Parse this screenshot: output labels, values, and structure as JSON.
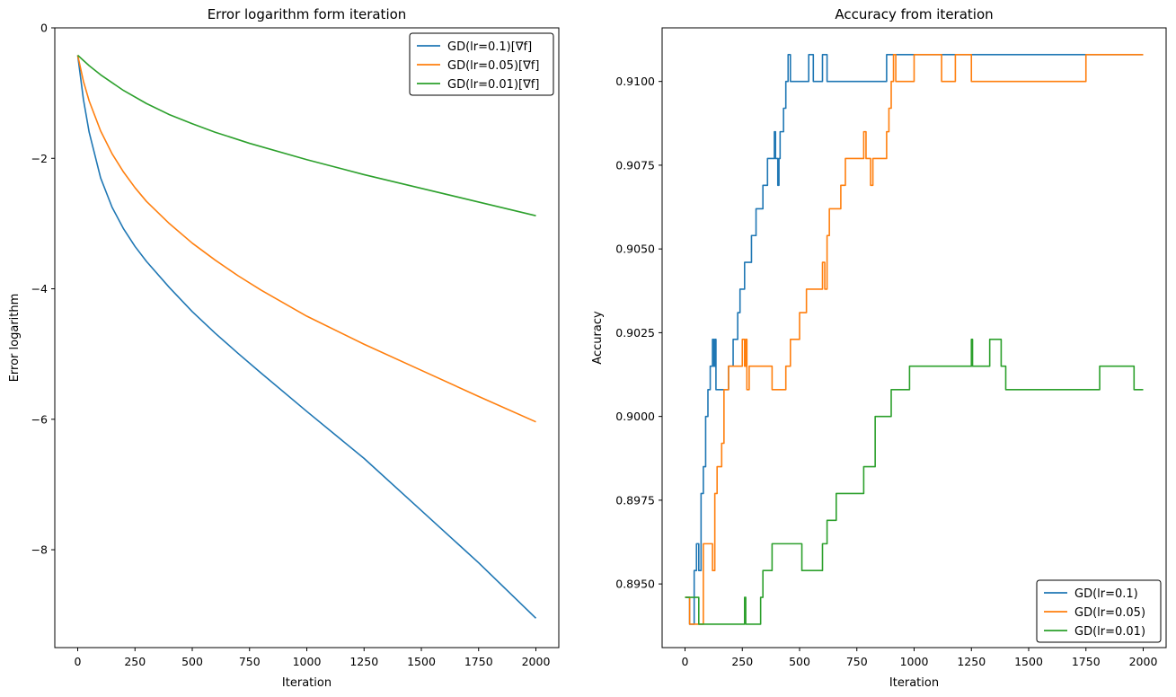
{
  "chart_data": [
    {
      "type": "line",
      "title": "Error logarithm form iteration",
      "xlabel": "Iteration",
      "ylabel": "Error logarithm",
      "xlim": [
        -100,
        2100
      ],
      "ylim": [
        -9.5,
        0
      ],
      "xticks": [
        0,
        250,
        500,
        750,
        1000,
        1250,
        1500,
        1750,
        2000
      ],
      "yticks": [
        0,
        -2,
        -4,
        -6,
        -8
      ],
      "ytick_labels": [
        "0",
        "−2",
        "−4",
        "−6",
        "−8"
      ],
      "legend_position": "upper right",
      "series": [
        {
          "name": "GD(lr=0.1)[∇f]",
          "color": "#1f77b4",
          "x": [
            0,
            25,
            50,
            100,
            150,
            200,
            250,
            300,
            400,
            500,
            600,
            700,
            800,
            1000,
            1250,
            1500,
            1750,
            2000
          ],
          "values": [
            -0.42,
            -1.1,
            -1.6,
            -2.3,
            -2.75,
            -3.08,
            -3.35,
            -3.58,
            -3.98,
            -4.35,
            -4.68,
            -4.99,
            -5.29,
            -5.88,
            -6.6,
            -7.4,
            -8.2,
            -9.05
          ]
        },
        {
          "name": "GD(lr=0.05)[∇f]",
          "color": "#ff7f0e",
          "x": [
            0,
            25,
            50,
            100,
            150,
            200,
            250,
            300,
            400,
            500,
            600,
            700,
            800,
            1000,
            1250,
            1500,
            1750,
            2000
          ],
          "values": [
            -0.42,
            -0.82,
            -1.12,
            -1.58,
            -1.93,
            -2.21,
            -2.45,
            -2.66,
            -3.0,
            -3.3,
            -3.56,
            -3.8,
            -4.02,
            -4.42,
            -4.85,
            -5.25,
            -5.65,
            -6.04
          ]
        },
        {
          "name": "GD(lr=0.01)[∇f]",
          "color": "#2ca02c",
          "x": [
            0,
            50,
            100,
            200,
            300,
            400,
            500,
            600,
            750,
            1000,
            1250,
            1500,
            1750,
            2000
          ],
          "values": [
            -0.42,
            -0.58,
            -0.72,
            -0.96,
            -1.16,
            -1.33,
            -1.47,
            -1.6,
            -1.77,
            -2.02,
            -2.25,
            -2.46,
            -2.67,
            -2.88
          ]
        }
      ]
    },
    {
      "type": "line",
      "title": "Accuracy from iteration",
      "xlabel": "Iteration",
      "ylabel": "Accuracy",
      "xlim": [
        -100,
        2100
      ],
      "ylim": [
        0.8931,
        0.9116
      ],
      "xticks": [
        0,
        250,
        500,
        750,
        1000,
        1250,
        1500,
        1750,
        2000
      ],
      "yticks": [
        0.895,
        0.8975,
        0.9,
        0.9025,
        0.905,
        0.9075,
        0.91
      ],
      "ytick_labels": [
        "0.8950",
        "0.8975",
        "0.9000",
        "0.9025",
        "0.9050",
        "0.9075",
        "0.9100"
      ],
      "legend_position": "lower right",
      "series": [
        {
          "name": "GD(lr=0.1)",
          "color": "#1f77b4",
          "step": true,
          "x": [
            0,
            20,
            40,
            50,
            60,
            70,
            80,
            90,
            100,
            110,
            120,
            125,
            130,
            135,
            140,
            150,
            190,
            210,
            230,
            240,
            260,
            290,
            300,
            310,
            340,
            360,
            370,
            390,
            395,
            405,
            410,
            415,
            430,
            440,
            450,
            460,
            480,
            520,
            540,
            560,
            600,
            620,
            630,
            700,
            880,
            2000
          ],
          "values": [
            0.8946,
            0.8938,
            0.8954,
            0.8962,
            0.8954,
            0.8977,
            0.8985,
            0.9,
            0.9008,
            0.9015,
            0.9023,
            0.9015,
            0.9023,
            0.9008,
            0.9008,
            0.9008,
            0.9015,
            0.9023,
            0.9031,
            0.9038,
            0.9046,
            0.9054,
            0.9054,
            0.9062,
            0.9069,
            0.9077,
            0.9077,
            0.9085,
            0.9077,
            0.9069,
            0.9077,
            0.9085,
            0.9092,
            0.91,
            0.9108,
            0.91,
            0.91,
            0.91,
            0.9108,
            0.91,
            0.9108,
            0.91,
            0.91,
            0.91,
            0.9108,
            0.9108
          ]
        },
        {
          "name": "GD(lr=0.05)",
          "color": "#ff7f0e",
          "step": true,
          "x": [
            0,
            20,
            50,
            80,
            100,
            120,
            130,
            140,
            160,
            170,
            190,
            200,
            220,
            250,
            260,
            265,
            270,
            275,
            280,
            300,
            380,
            400,
            420,
            440,
            460,
            500,
            530,
            540,
            550,
            600,
            610,
            620,
            630,
            680,
            700,
            720,
            770,
            780,
            790,
            800,
            810,
            820,
            830,
            880,
            890,
            900,
            910,
            920,
            960,
            1000,
            1050,
            1120,
            1180,
            1200,
            1250,
            1750,
            1800,
            2000
          ],
          "values": [
            0.8946,
            0.8938,
            0.8938,
            0.8962,
            0.8962,
            0.8954,
            0.8977,
            0.8985,
            0.8992,
            0.9008,
            0.9015,
            0.9015,
            0.9015,
            0.9023,
            0.9015,
            0.9023,
            0.9008,
            0.9008,
            0.9015,
            0.9015,
            0.9008,
            0.9008,
            0.9008,
            0.9015,
            0.9023,
            0.9031,
            0.9038,
            0.9038,
            0.9038,
            0.9046,
            0.9038,
            0.9054,
            0.9062,
            0.9069,
            0.9077,
            0.9077,
            0.9077,
            0.9085,
            0.9077,
            0.9077,
            0.9069,
            0.9077,
            0.9077,
            0.9085,
            0.9092,
            0.91,
            0.9108,
            0.91,
            0.91,
            0.9108,
            0.9108,
            0.91,
            0.9108,
            0.9108,
            0.91,
            0.9108,
            0.9108,
            0.9108
          ]
        },
        {
          "name": "GD(lr=0.01)",
          "color": "#2ca02c",
          "step": true,
          "x": [
            0,
            20,
            60,
            80,
            150,
            260,
            265,
            270,
            300,
            330,
            340,
            380,
            420,
            510,
            600,
            620,
            660,
            700,
            780,
            830,
            900,
            980,
            1150,
            1250,
            1255,
            1300,
            1330,
            1380,
            1400,
            1600,
            1810,
            1960,
            2000
          ],
          "values": [
            0.8946,
            0.8946,
            0.8938,
            0.8938,
            0.8938,
            0.8946,
            0.8938,
            0.8938,
            0.8938,
            0.8946,
            0.8954,
            0.8962,
            0.8962,
            0.8954,
            0.8962,
            0.8969,
            0.8977,
            0.8977,
            0.8985,
            0.9,
            0.9008,
            0.9015,
            0.9015,
            0.9023,
            0.9015,
            0.9015,
            0.9023,
            0.9015,
            0.9008,
            0.9008,
            0.9015,
            0.9008,
            0.9008
          ]
        }
      ]
    }
  ]
}
